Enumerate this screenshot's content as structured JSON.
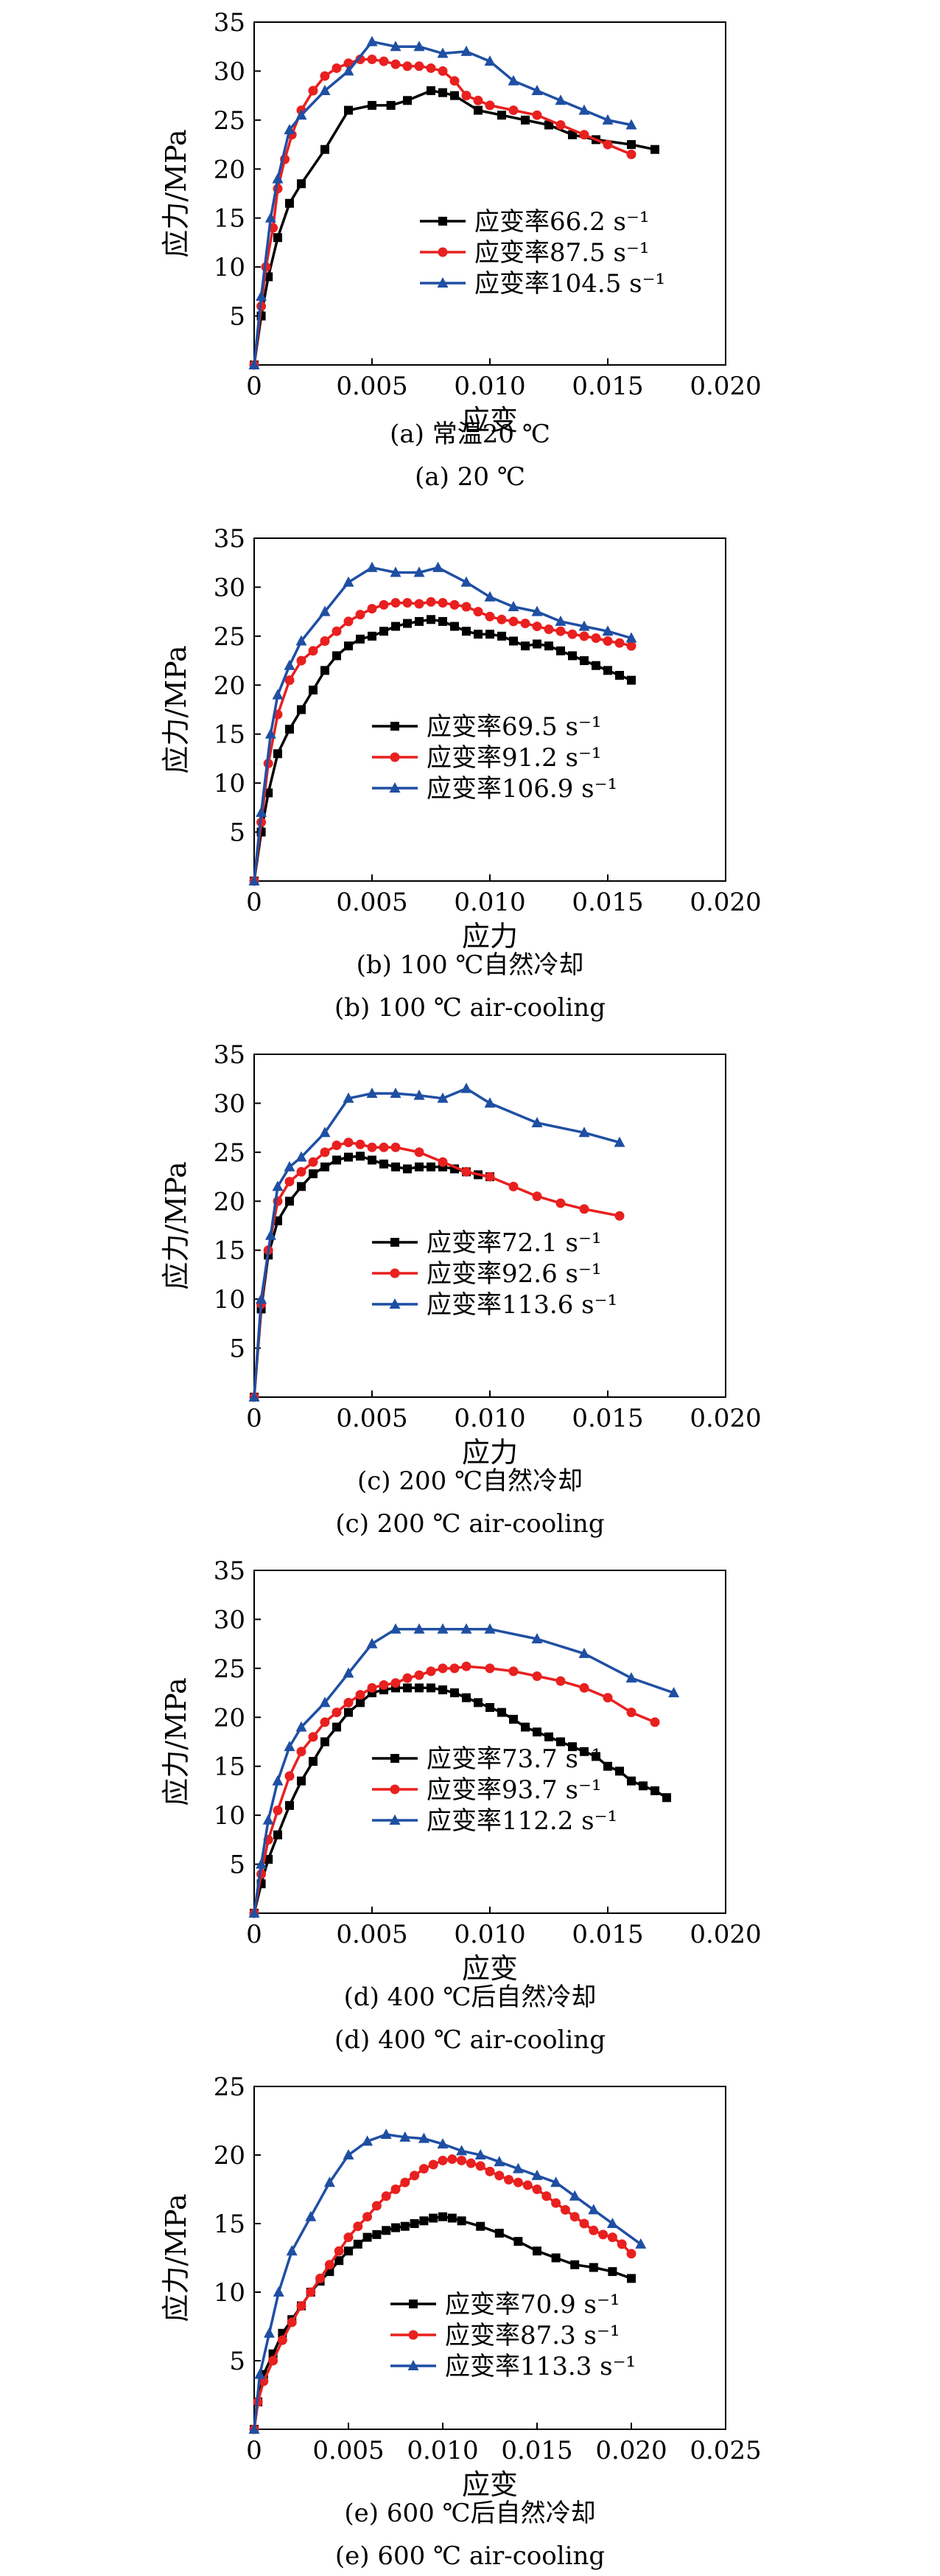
{
  "series_style": [
    {
      "color": "#000000",
      "marker": "square"
    },
    {
      "color": "#e8201f",
      "marker": "circle"
    },
    {
      "color": "#1f4fa3",
      "marker": "triangle"
    }
  ],
  "chart_data": [
    {
      "type": "line",
      "xlabel": "应变",
      "ylabel": "应力/MPa",
      "xlim": [
        0,
        0.02
      ],
      "ylim": [
        0,
        35
      ],
      "xticks": [
        "0",
        "0.005",
        "0.010",
        "0.015",
        "0.020"
      ],
      "yticks": [
        "5",
        "10",
        "15",
        "20",
        "25",
        "30",
        "35"
      ],
      "caption_cn": "(a) 常温20 ℃",
      "caption_en": "(a) 20 ℃",
      "legend_position": "center-right",
      "series": [
        {
          "name": "应变率66.2 s⁻¹",
          "x": [
            0,
            0.0003,
            0.0006,
            0.001,
            0.0015,
            0.002,
            0.003,
            0.004,
            0.005,
            0.0058,
            0.0065,
            0.0075,
            0.008,
            0.0085,
            0.0095,
            0.0105,
            0.0115,
            0.0125,
            0.0135,
            0.0145,
            0.016,
            0.017
          ],
          "y": [
            0,
            5,
            9,
            13,
            16.5,
            18.5,
            22,
            26,
            26.5,
            26.5,
            27,
            28,
            27.8,
            27.5,
            26,
            25.5,
            25,
            24.5,
            23.5,
            23,
            22.5,
            22
          ]
        },
        {
          "name": "应变率87.5 s⁻¹",
          "x": [
            0,
            0.0003,
            0.0005,
            0.0008,
            0.001,
            0.0013,
            0.0016,
            0.002,
            0.0025,
            0.003,
            0.0035,
            0.004,
            0.0045,
            0.005,
            0.0055,
            0.006,
            0.0065,
            0.007,
            0.0075,
            0.008,
            0.0085,
            0.009,
            0.0095,
            0.01,
            0.011,
            0.012,
            0.013,
            0.014,
            0.015,
            0.016
          ],
          "y": [
            0,
            6,
            10,
            14,
            18,
            21,
            23.5,
            26,
            28,
            29.5,
            30.3,
            30.8,
            31.2,
            31.2,
            31,
            30.7,
            30.5,
            30.5,
            30.3,
            30,
            29,
            27.5,
            27,
            26.5,
            26,
            25.5,
            24.5,
            23.5,
            22.5,
            21.5
          ]
        },
        {
          "name": "应变率104.5 s⁻¹",
          "x": [
            0,
            0.0003,
            0.0007,
            0.001,
            0.0015,
            0.002,
            0.003,
            0.004,
            0.005,
            0.006,
            0.007,
            0.008,
            0.009,
            0.01,
            0.011,
            0.012,
            0.013,
            0.014,
            0.015,
            0.016
          ],
          "y": [
            0,
            7,
            15,
            19,
            24,
            25.5,
            28,
            30,
            33,
            32.5,
            32.5,
            31.8,
            32,
            31,
            29,
            28,
            27,
            26,
            25,
            24.5
          ]
        }
      ]
    },
    {
      "type": "line",
      "xlabel": "应力",
      "ylabel": "应力/MPa",
      "xlim": [
        0,
        0.02
      ],
      "ylim": [
        0,
        35
      ],
      "xticks": [
        "0",
        "0.005",
        "0.010",
        "0.015",
        "0.020"
      ],
      "yticks": [
        "5",
        "10",
        "15",
        "20",
        "25",
        "30",
        "35"
      ],
      "caption_cn": "(b) 100 ℃自然冷却",
      "caption_en": "(b) 100 ℃ air-cooling",
      "legend_position": "lower-center",
      "series": [
        {
          "name": "应变率69.5 s⁻¹",
          "x": [
            0,
            0.0003,
            0.0006,
            0.001,
            0.0015,
            0.002,
            0.0025,
            0.003,
            0.0035,
            0.004,
            0.0045,
            0.005,
            0.0055,
            0.006,
            0.0065,
            0.007,
            0.0075,
            0.008,
            0.0085,
            0.009,
            0.0095,
            0.01,
            0.0105,
            0.011,
            0.0115,
            0.012,
            0.0125,
            0.013,
            0.0135,
            0.014,
            0.0145,
            0.015,
            0.0155,
            0.016
          ],
          "y": [
            0,
            5,
            9,
            13,
            15.5,
            17.5,
            19.5,
            21.5,
            23,
            24,
            24.7,
            25,
            25.5,
            26,
            26.3,
            26.5,
            26.7,
            26.5,
            26,
            25.5,
            25.2,
            25.2,
            25,
            24.5,
            24,
            24.2,
            24,
            23.5,
            23,
            22.5,
            22,
            21.5,
            21,
            20.5
          ]
        },
        {
          "name": "应变率91.2 s⁻¹",
          "x": [
            0,
            0.0003,
            0.0006,
            0.001,
            0.0015,
            0.002,
            0.0025,
            0.003,
            0.0035,
            0.004,
            0.0045,
            0.005,
            0.0055,
            0.006,
            0.0065,
            0.007,
            0.0075,
            0.008,
            0.0085,
            0.009,
            0.0095,
            0.01,
            0.0105,
            0.011,
            0.0115,
            0.012,
            0.0125,
            0.013,
            0.0135,
            0.014,
            0.0145,
            0.015,
            0.0155,
            0.016
          ],
          "y": [
            0,
            6,
            12,
            17,
            20.5,
            22.5,
            23.5,
            24.5,
            25.5,
            26.5,
            27.2,
            27.8,
            28.2,
            28.4,
            28.4,
            28.3,
            28.5,
            28.4,
            28.2,
            28,
            27.5,
            27,
            26.7,
            26.5,
            26.3,
            26,
            25.7,
            25.5,
            25.2,
            25,
            24.8,
            24.5,
            24.3,
            24
          ]
        },
        {
          "name": "应变率106.9 s⁻¹",
          "x": [
            0,
            0.0003,
            0.0007,
            0.001,
            0.0015,
            0.002,
            0.003,
            0.004,
            0.005,
            0.006,
            0.007,
            0.0078,
            0.009,
            0.01,
            0.011,
            0.012,
            0.013,
            0.014,
            0.015,
            0.016
          ],
          "y": [
            0,
            7,
            15,
            19,
            22,
            24.5,
            27.5,
            30.5,
            32,
            31.5,
            31.5,
            32,
            30.5,
            29,
            28,
            27.5,
            26.5,
            26,
            25.5,
            24.8
          ]
        }
      ]
    },
    {
      "type": "line",
      "xlabel": "应力",
      "ylabel": "应力/MPa",
      "xlim": [
        0,
        0.02
      ],
      "ylim": [
        0,
        35
      ],
      "xticks": [
        "0",
        "0.005",
        "0.010",
        "0.015",
        "0.020"
      ],
      "yticks": [
        "5",
        "10",
        "15",
        "20",
        "25",
        "30",
        "35"
      ],
      "caption_cn": "(c) 200 ℃自然冷却",
      "caption_en": "(c) 200 ℃ air-cooling",
      "legend_position": "lower-center",
      "series": [
        {
          "name": "应变率72.1 s⁻¹",
          "x": [
            0,
            0.0003,
            0.0006,
            0.001,
            0.0015,
            0.002,
            0.0025,
            0.003,
            0.0035,
            0.004,
            0.0045,
            0.005,
            0.0055,
            0.006,
            0.0065,
            0.007,
            0.0075,
            0.008,
            0.0085,
            0.009,
            0.0095,
            0.01
          ],
          "y": [
            0,
            9,
            14.5,
            18,
            20,
            21.5,
            22.8,
            23.5,
            24.2,
            24.5,
            24.6,
            24.2,
            23.8,
            23.5,
            23.3,
            23.5,
            23.5,
            23.5,
            23.3,
            23,
            22.7,
            22.5
          ]
        },
        {
          "name": "应变率92.6 s⁻¹",
          "x": [
            0,
            0.0003,
            0.0006,
            0.001,
            0.0015,
            0.002,
            0.0025,
            0.003,
            0.0035,
            0.004,
            0.0045,
            0.005,
            0.0055,
            0.006,
            0.007,
            0.008,
            0.009,
            0.01,
            0.011,
            0.012,
            0.013,
            0.014,
            0.0155
          ],
          "y": [
            0,
            9.5,
            15,
            20,
            22,
            23,
            24,
            25,
            25.7,
            26,
            25.8,
            25.5,
            25.5,
            25.5,
            25,
            24,
            23,
            22.5,
            21.5,
            20.5,
            19.8,
            19.2,
            18.5
          ]
        },
        {
          "name": "应变率113.6 s⁻¹",
          "x": [
            0,
            0.0003,
            0.0007,
            0.001,
            0.0015,
            0.002,
            0.003,
            0.004,
            0.005,
            0.006,
            0.007,
            0.008,
            0.009,
            0.01,
            0.012,
            0.014,
            0.0155
          ],
          "y": [
            0,
            10,
            16.5,
            21.5,
            23.5,
            24.5,
            27,
            30.5,
            31,
            31,
            30.8,
            30.5,
            31.5,
            30,
            28,
            27,
            26
          ]
        }
      ]
    },
    {
      "type": "line",
      "xlabel": "应变",
      "ylabel": "应力/MPa",
      "xlim": [
        0,
        0.02
      ],
      "ylim": [
        0,
        35
      ],
      "xticks": [
        "0",
        "0.005",
        "0.010",
        "0.015",
        "0.020"
      ],
      "yticks": [
        "5",
        "10",
        "15",
        "20",
        "25",
        "30",
        "35"
      ],
      "caption_cn": "(d) 400 ℃后自然冷却",
      "caption_en": "(d) 400 ℃ air-cooling",
      "legend_position": "lower-center",
      "series": [
        {
          "name": "应变率73.7 s⁻¹",
          "x": [
            0,
            0.0003,
            0.0006,
            0.001,
            0.0015,
            0.002,
            0.0025,
            0.003,
            0.0035,
            0.004,
            0.0045,
            0.005,
            0.0055,
            0.006,
            0.0065,
            0.007,
            0.0075,
            0.008,
            0.0085,
            0.009,
            0.0095,
            0.01,
            0.0105,
            0.011,
            0.0115,
            0.012,
            0.0125,
            0.013,
            0.0135,
            0.014,
            0.0145,
            0.015,
            0.0155,
            0.016,
            0.0165,
            0.017,
            0.0175
          ],
          "y": [
            0,
            3,
            5.5,
            8,
            11,
            13.5,
            15.5,
            17.5,
            19,
            20.5,
            21.5,
            22.5,
            22.8,
            23,
            23,
            23,
            23,
            22.8,
            22.5,
            22,
            21.5,
            21,
            20.5,
            19.8,
            19,
            18.5,
            18,
            17.5,
            17,
            16.5,
            16,
            15,
            14.5,
            13.5,
            13,
            12.5,
            11.8
          ]
        },
        {
          "name": "应变率93.7 s⁻¹",
          "x": [
            0,
            0.0003,
            0.0006,
            0.001,
            0.0015,
            0.002,
            0.0025,
            0.003,
            0.0035,
            0.004,
            0.0045,
            0.005,
            0.0055,
            0.006,
            0.0065,
            0.007,
            0.0075,
            0.008,
            0.0085,
            0.009,
            0.01,
            0.011,
            0.012,
            0.013,
            0.014,
            0.015,
            0.016,
            0.017
          ],
          "y": [
            0,
            4,
            7.5,
            10.5,
            14,
            16.5,
            18,
            19.5,
            20.5,
            21.5,
            22.3,
            23,
            23.3,
            23.5,
            24,
            24.3,
            24.7,
            25,
            25,
            25.2,
            25,
            24.7,
            24.2,
            23.7,
            23,
            22,
            20.5,
            19.5
          ]
        },
        {
          "name": "应变率112.2 s⁻¹",
          "x": [
            0,
            0.0003,
            0.0006,
            0.001,
            0.0015,
            0.002,
            0.003,
            0.004,
            0.005,
            0.006,
            0.007,
            0.008,
            0.009,
            0.01,
            0.012,
            0.014,
            0.016,
            0.0178
          ],
          "y": [
            0,
            5,
            9.5,
            13.5,
            17,
            19,
            21.5,
            24.5,
            27.5,
            29,
            29,
            29,
            29,
            29,
            28,
            26.5,
            24,
            22.5
          ]
        }
      ]
    },
    {
      "type": "line",
      "xlabel": "应变",
      "ylabel": "应力/MPa",
      "xlim": [
        0,
        0.025
      ],
      "ylim": [
        0,
        25
      ],
      "xticks": [
        "0",
        "0.005",
        "0.010",
        "0.015",
        "0.020",
        "0.025"
      ],
      "yticks": [
        "5",
        "10",
        "15",
        "20",
        "25"
      ],
      "caption_cn": "(e) 600 ℃后自然冷却",
      "caption_en": "(e) 600 ℃ air-cooling",
      "legend_position": "lower-right",
      "series": [
        {
          "name": "应变率70.9 s⁻¹",
          "x": [
            0,
            0.0002,
            0.0005,
            0.001,
            0.0015,
            0.002,
            0.0025,
            0.003,
            0.0035,
            0.004,
            0.0045,
            0.005,
            0.0055,
            0.006,
            0.0065,
            0.007,
            0.0075,
            0.008,
            0.0085,
            0.009,
            0.0095,
            0.01,
            0.0105,
            0.011,
            0.012,
            0.013,
            0.014,
            0.015,
            0.016,
            0.017,
            0.018,
            0.019,
            0.02
          ],
          "y": [
            0,
            2,
            4,
            5.5,
            7,
            8,
            9,
            10,
            10.8,
            11.5,
            12.3,
            13,
            13.5,
            14,
            14.2,
            14.5,
            14.7,
            14.8,
            15,
            15.2,
            15.4,
            15.5,
            15.4,
            15.2,
            14.8,
            14.3,
            13.7,
            13,
            12.5,
            12,
            11.8,
            11.5,
            11
          ]
        },
        {
          "name": "应变率87.3 s⁻¹",
          "x": [
            0,
            0.0002,
            0.0005,
            0.001,
            0.0015,
            0.002,
            0.0025,
            0.003,
            0.0035,
            0.004,
            0.0045,
            0.005,
            0.0055,
            0.006,
            0.0065,
            0.007,
            0.0075,
            0.008,
            0.0085,
            0.009,
            0.0095,
            0.01,
            0.0105,
            0.011,
            0.0115,
            0.012,
            0.0125,
            0.013,
            0.0135,
            0.014,
            0.0145,
            0.015,
            0.0155,
            0.016,
            0.0165,
            0.017,
            0.0175,
            0.018,
            0.0185,
            0.019,
            0.0195,
            0.02
          ],
          "y": [
            0,
            2,
            3.5,
            5,
            6.5,
            7.8,
            9,
            10,
            11,
            12,
            13,
            14,
            14.8,
            15.5,
            16.3,
            17,
            17.5,
            18,
            18.5,
            19,
            19.3,
            19.6,
            19.7,
            19.6,
            19.4,
            19.2,
            18.8,
            18.5,
            18.2,
            18,
            17.8,
            17.5,
            17,
            16.5,
            16,
            15.5,
            15,
            14.5,
            14.2,
            14,
            13.5,
            12.8
          ]
        },
        {
          "name": "应变率113.3 s⁻¹",
          "x": [
            0,
            0.0003,
            0.0008,
            0.0013,
            0.002,
            0.003,
            0.004,
            0.005,
            0.006,
            0.007,
            0.008,
            0.009,
            0.01,
            0.011,
            0.012,
            0.013,
            0.014,
            0.015,
            0.016,
            0.017,
            0.018,
            0.019,
            0.0205
          ],
          "y": [
            0,
            4,
            7,
            10,
            13,
            15.5,
            18,
            20,
            21,
            21.5,
            21.3,
            21.2,
            20.8,
            20.3,
            20,
            19.5,
            19,
            18.5,
            18,
            17,
            16,
            15,
            13.5
          ]
        }
      ]
    }
  ]
}
